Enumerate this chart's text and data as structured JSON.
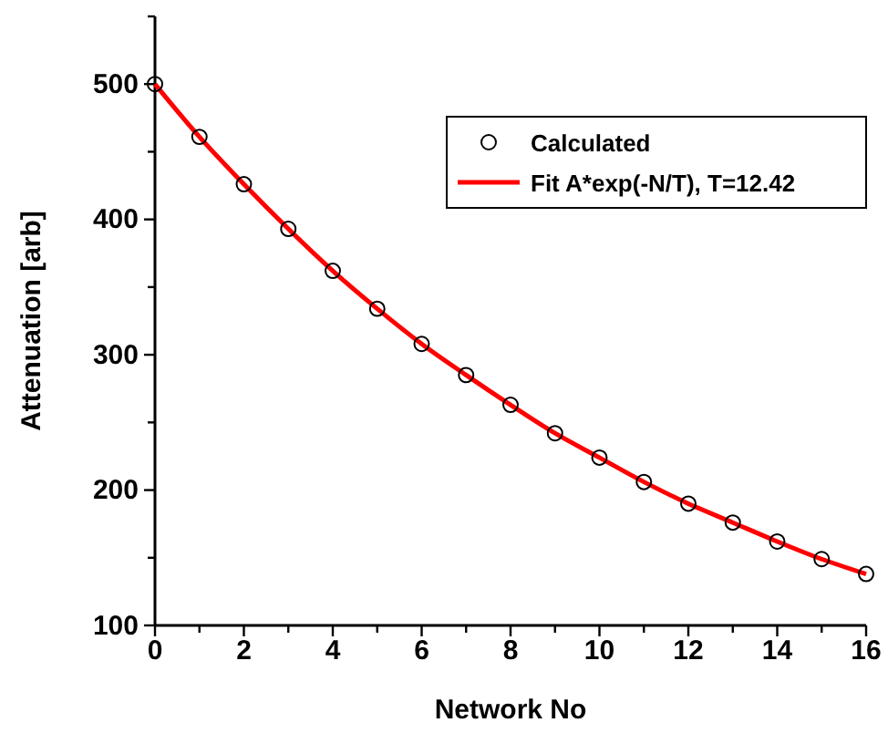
{
  "chart_data": {
    "type": "scatter",
    "xlabel": "Network No",
    "ylabel": "Attenuation [arb]",
    "xlim": [
      0,
      16
    ],
    "ylim": [
      100,
      550
    ],
    "xticks": [
      0,
      {
        "value": 1,
        "label": null
      },
      2,
      {
        "value": 3,
        "label": null
      },
      4,
      {
        "value": 5,
        "label": null
      },
      6,
      {
        "value": 7,
        "label": null
      },
      8,
      {
        "value": 9,
        "label": null
      },
      10,
      {
        "value": 11,
        "label": null
      },
      12,
      {
        "value": 13,
        "label": null
      },
      14,
      {
        "value": 15,
        "label": null
      },
      16
    ],
    "yticks": [
      100,
      {
        "value": 150,
        "label": null
      },
      200,
      {
        "value": 250,
        "label": null
      },
      300,
      {
        "value": 350,
        "label": null
      },
      400,
      {
        "value": 450,
        "label": null
      },
      500,
      {
        "value": 550,
        "label": null
      }
    ],
    "legend": "top right",
    "grid": false,
    "series": [
      {
        "name": "Calculated",
        "marker": "circle",
        "color": "#000000",
        "x": [
          0,
          1,
          2,
          3,
          4,
          5,
          6,
          7,
          8,
          9,
          10,
          11,
          12,
          13,
          14,
          15,
          16
        ],
        "values": [
          500,
          461,
          426,
          393,
          362,
          334,
          308,
          285,
          263,
          242,
          224,
          206,
          190,
          176,
          162,
          149,
          138
        ]
      },
      {
        "name": "Fit A*exp(-N/T), T=12.42",
        "type": "line",
        "marker": "none",
        "color": "#ff0000",
        "x": [
          0,
          1,
          2,
          3,
          4,
          5,
          6,
          7,
          8,
          9,
          10,
          11,
          12,
          13,
          14,
          15,
          16
        ],
        "values": [
          500,
          461,
          426,
          393,
          362,
          334,
          308,
          285,
          263,
          242,
          224,
          206,
          190,
          176,
          162,
          149,
          138
        ]
      }
    ]
  }
}
